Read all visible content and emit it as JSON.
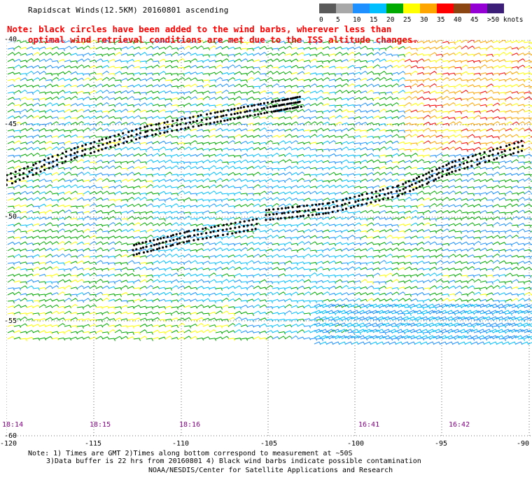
{
  "title": "Rapidscat Winds(12.5KM) 20160801 ascending",
  "note_line1": "Note: black circles have been added to the wind barbs, wherever less than",
  "note_line2": "optimal wind retrieval conditions are met due to the ISS altitude changes.",
  "legend": {
    "labels": [
      "0",
      "5",
      "10",
      "15",
      "20",
      "25",
      "30",
      "35",
      "40",
      "45",
      ">50 knots"
    ],
    "colors": [
      "#5a5a5a",
      "#a8a8a8",
      "#1e90ff",
      "#00bfff",
      "#00aa00",
      "#ffff00",
      "#ffa500",
      "#ff0000",
      "#8b4513",
      "#9400d3",
      "#3c1e78"
    ]
  },
  "x_axis": {
    "labels": [
      "-120",
      "-115",
      "-110",
      "-105",
      "-100",
      "-95",
      "-90"
    ]
  },
  "y_axis": {
    "labels": [
      "-40",
      "-45",
      "-50",
      "-55",
      "-60"
    ]
  },
  "pass_times": [
    "18:14",
    "18:15",
    "18:16",
    "16:41",
    "16:42"
  ],
  "footer": {
    "line1": "Note: 1) Times are GMT 2)Times along bottom correspond to measurement at ~50S",
    "line2": "3)Data buffer is 22 hrs from 20160801 4) Black wind barbs indicate possible contamination",
    "line3": "NOAA/NESDIS/Center for Satellite Applications and Research"
  }
}
